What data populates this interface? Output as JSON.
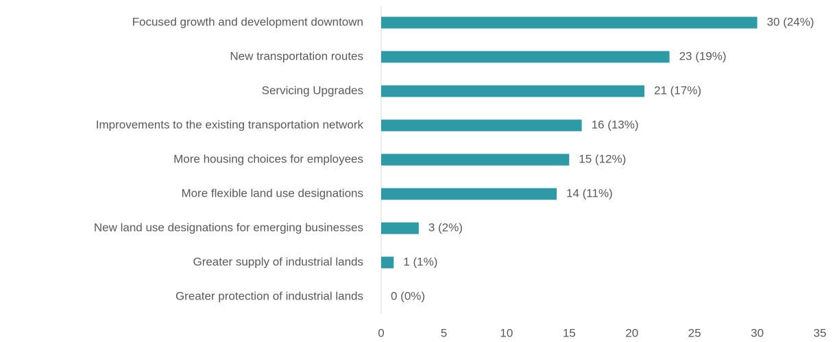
{
  "chart_data": {
    "type": "hbar",
    "categories": [
      "Focused growth and development downtown",
      "New transportation routes",
      "Servicing Upgrades",
      "Improvements to the existing transportation network",
      "More housing choices for employees",
      "More flexible land use designations",
      "New land use designations for emerging businesses",
      "Greater supply of industrial lands",
      "Greater protection of industrial lands"
    ],
    "values": [
      30,
      23,
      21,
      16,
      15,
      14,
      3,
      1,
      0
    ],
    "value_labels": [
      "30 (24%)",
      "23 (19%)",
      "21 (17%)",
      "16 (13%)",
      "15 (12%)",
      "14 (11%)",
      "3 (2%)",
      "1 (1%)",
      "0 (0%)"
    ],
    "color": "#2e9aa5",
    "xlim": [
      0,
      35
    ],
    "xticks": [
      0,
      5,
      10,
      15,
      20,
      25,
      30,
      35
    ],
    "grid": false
  }
}
